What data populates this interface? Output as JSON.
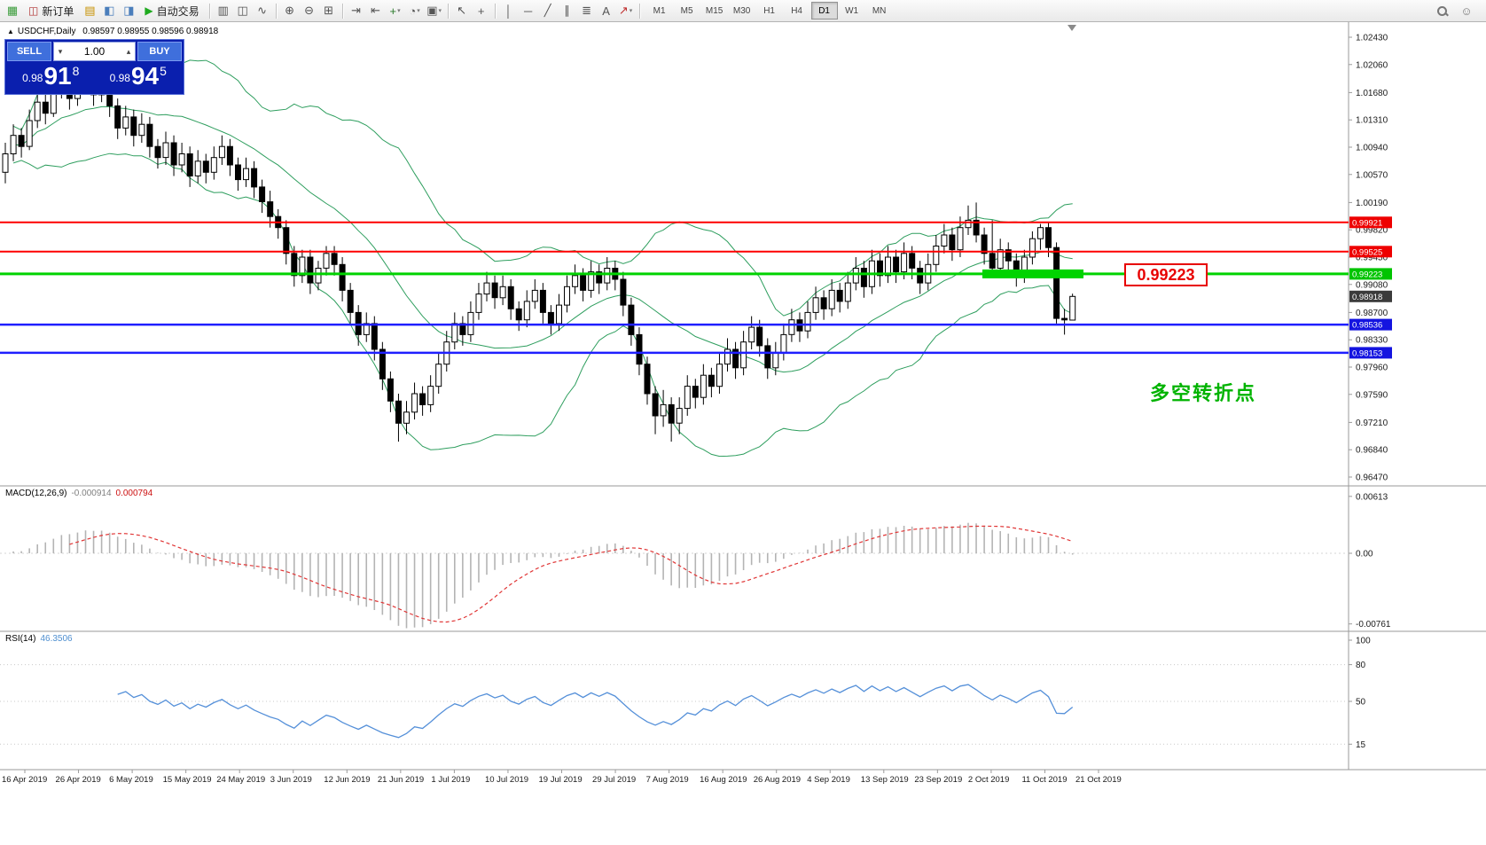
{
  "toolbar": {
    "items": [
      {
        "type": "icon",
        "name": "new-chart-icon"
      },
      {
        "type": "button",
        "name": "new-order-button",
        "icon": "new-order-icon",
        "label": "新订单"
      },
      {
        "type": "icon",
        "name": "market-watch-icon"
      },
      {
        "type": "icon",
        "name": "data-window-icon"
      },
      {
        "type": "icon",
        "name": "navigator-icon"
      },
      {
        "type": "button",
        "name": "autotrading-button",
        "icon": "autotrading-icon",
        "label": "自动交易"
      },
      {
        "type": "sep"
      },
      {
        "type": "icon",
        "name": "chart-bars-icon"
      },
      {
        "type": "icon",
        "name": "chart-candles-icon"
      },
      {
        "type": "icon",
        "name": "chart-line-icon"
      },
      {
        "type": "sep"
      },
      {
        "type": "icon",
        "name": "zoom-in-icon"
      },
      {
        "type": "icon",
        "name": "zoom-out-icon"
      },
      {
        "type": "icon",
        "name": "tile-windows-icon"
      },
      {
        "type": "sep"
      },
      {
        "type": "icon",
        "name": "auto-scroll-icon"
      },
      {
        "type": "icon",
        "name": "chart-shift-icon"
      },
      {
        "type": "icon",
        "name": "indicators-icon",
        "dropdown": true
      },
      {
        "type": "icon",
        "name": "periods-icon",
        "dropdown": true
      },
      {
        "type": "icon",
        "name": "templates-icon",
        "dropdown": true
      },
      {
        "type": "sep"
      },
      {
        "type": "icon",
        "name": "cursor-icon"
      },
      {
        "type": "icon",
        "name": "crosshair-icon"
      },
      {
        "type": "sep"
      },
      {
        "type": "icon",
        "name": "vertical-line-icon"
      },
      {
        "type": "icon",
        "name": "horizontal-line-icon"
      },
      {
        "type": "icon",
        "name": "trendline-icon"
      },
      {
        "type": "icon",
        "name": "channel-icon"
      },
      {
        "type": "icon",
        "name": "fibonacci-icon"
      },
      {
        "type": "icon",
        "name": "text-icon"
      },
      {
        "type": "icon",
        "name": "arrows-icon",
        "dropdown": true
      },
      {
        "type": "sep"
      },
      {
        "type": "tf-group"
      }
    ],
    "timeframes": [
      "M1",
      "M5",
      "M15",
      "M30",
      "H1",
      "H4",
      "D1",
      "W1",
      "MN"
    ],
    "active_timeframe": "D1",
    "right_icons": [
      {
        "name": "search-icon"
      },
      {
        "name": "community-icon"
      }
    ]
  },
  "chart_header": {
    "collapse_glyph": "▲",
    "symbol_period": "USDCHF,Daily",
    "ohlc": "0.98597 0.98955 0.98596 0.98918"
  },
  "trade_panel": {
    "sell_label": "SELL",
    "buy_label": "BUY",
    "volume": "1.00",
    "volume_down_glyph": "▾",
    "volume_up_glyph": "▴",
    "sell_price_prefix": "0.98",
    "sell_price_big": "91",
    "sell_price_pip": "8",
    "buy_price_prefix": "0.98",
    "buy_price_big": "94",
    "buy_price_pip": "5"
  },
  "annotation": {
    "price_label": "0.99223",
    "label_color": "#e80000",
    "note_text": "多空转折点",
    "note_color": "#00b300"
  },
  "price_axis": {
    "labels": [
      "1.02430",
      "1.02060",
      "1.01680",
      "1.01310",
      "1.00940",
      "1.00570",
      "1.00190",
      "0.99820",
      "0.99450",
      "0.99080",
      "0.98700",
      "0.98330",
      "0.97960",
      "0.97590",
      "0.97210",
      "0.96840",
      "0.96470"
    ],
    "tags": [
      {
        "text": "0.99921",
        "color": "#ee0000"
      },
      {
        "text": "0.99525",
        "color": "#ee0000"
      },
      {
        "text": "0.99223",
        "color": "#00c400"
      },
      {
        "text": "0.98918",
        "color": "#3b3b3b"
      },
      {
        "text": "0.98536",
        "color": "#1414e0"
      },
      {
        "text": "0.98153",
        "color": "#1414e0"
      }
    ]
  },
  "macd_panel": {
    "title": "MACD(12,26,9)",
    "main_value": "-0.000914",
    "signal_value": "0.000794",
    "axis_labels": [
      "0.00613",
      "0.00",
      "-0.00761"
    ]
  },
  "rsi_panel": {
    "title": "RSI(14)",
    "value": "46.3506",
    "axis_labels": [
      "100",
      "80",
      "50",
      "15"
    ]
  },
  "date_axis": {
    "labels": [
      "16 Apr 2019",
      "26 Apr 2019",
      "6 May 2019",
      "15 May 2019",
      "24 May 2019",
      "3 Jun 2019",
      "12 Jun 2019",
      "21 Jun 2019",
      "1 Jul 2019",
      "10 Jul 2019",
      "19 Jul 2019",
      "29 Jul 2019",
      "7 Aug 2019",
      "16 Aug 2019",
      "26 Aug 2019",
      "4 Sep 2019",
      "13 Sep 2019",
      "23 Sep 2019",
      "2 Oct 2019",
      "11 Oct 2019",
      "21 Oct 2019"
    ]
  },
  "chart_data": {
    "type": "candlestick",
    "symbol": "USDCHF",
    "period": "Daily",
    "price_range": [
      0.9647,
      1.0243
    ],
    "ohlc": [
      [
        1.006,
        1.01,
        1.0045,
        1.0085
      ],
      [
        1.0085,
        1.0125,
        1.0075,
        1.011
      ],
      [
        1.011,
        1.012,
        1.008,
        1.0095
      ],
      [
        1.0095,
        1.0145,
        1.009,
        1.013
      ],
      [
        1.013,
        1.017,
        1.012,
        1.0155
      ],
      [
        1.0155,
        1.0165,
        1.0125,
        1.014
      ],
      [
        1.014,
        1.0185,
        1.0135,
        1.017
      ],
      [
        1.017,
        1.02,
        1.016,
        1.0185
      ],
      [
        1.0185,
        1.0195,
        1.0145,
        1.016
      ],
      [
        1.016,
        1.019,
        1.015,
        1.0175
      ],
      [
        1.0175,
        1.0205,
        1.0165,
        1.019
      ],
      [
        1.019,
        1.02,
        1.015,
        1.0165
      ],
      [
        1.0165,
        1.019,
        1.0155,
        1.0175
      ],
      [
        1.0175,
        1.0185,
        1.0135,
        1.015
      ],
      [
        1.015,
        1.016,
        1.0105,
        1.012
      ],
      [
        1.012,
        1.015,
        1.011,
        1.0135
      ],
      [
        1.0135,
        1.0145,
        1.0095,
        1.011
      ],
      [
        1.011,
        1.014,
        1.01,
        1.0125
      ],
      [
        1.0125,
        1.0135,
        1.008,
        1.0095
      ],
      [
        1.0095,
        1.0105,
        1.0065,
        1.008
      ],
      [
        1.008,
        1.0115,
        1.007,
        1.01
      ],
      [
        1.01,
        1.011,
        1.0055,
        1.007
      ],
      [
        1.007,
        1.01,
        1.006,
        1.0085
      ],
      [
        1.0085,
        1.0095,
        1.004,
        1.0055
      ],
      [
        1.0055,
        1.009,
        1.0045,
        1.0075
      ],
      [
        1.0075,
        1.0085,
        1.0045,
        1.006
      ],
      [
        1.006,
        1.0095,
        1.005,
        1.008
      ],
      [
        1.008,
        1.011,
        1.007,
        1.0095
      ],
      [
        1.0095,
        1.0105,
        1.0055,
        1.007
      ],
      [
        1.007,
        1.008,
        1.0035,
        1.005
      ],
      [
        1.005,
        1.008,
        1.004,
        1.0065
      ],
      [
        1.0065,
        1.0075,
        1.0025,
        1.004
      ],
      [
        1.004,
        1.005,
        1.0005,
        1.002
      ],
      [
        1.002,
        1.0035,
        0.9985,
        1.0
      ],
      [
        1.0,
        1.001,
        0.997,
        0.9985
      ],
      [
        0.9985,
        0.9995,
        0.9935,
        0.995
      ],
      [
        0.995,
        0.996,
        0.9905,
        0.992
      ],
      [
        0.992,
        0.9955,
        0.991,
        0.9945
      ],
      [
        0.9945,
        0.9955,
        0.9895,
        0.991
      ],
      [
        0.991,
        0.994,
        0.99,
        0.993
      ],
      [
        0.993,
        0.996,
        0.992,
        0.995
      ],
      [
        0.995,
        0.996,
        0.992,
        0.9935
      ],
      [
        0.9935,
        0.9945,
        0.9885,
        0.99
      ],
      [
        0.99,
        0.991,
        0.9855,
        0.987
      ],
      [
        0.987,
        0.988,
        0.9825,
        0.984
      ],
      [
        0.984,
        0.987,
        0.983,
        0.9855
      ],
      [
        0.9855,
        0.9865,
        0.9805,
        0.982
      ],
      [
        0.982,
        0.983,
        0.9765,
        0.978
      ],
      [
        0.978,
        0.979,
        0.9735,
        0.975
      ],
      [
        0.975,
        0.976,
        0.9695,
        0.972
      ],
      [
        0.972,
        0.975,
        0.9705,
        0.9735
      ],
      [
        0.9735,
        0.9775,
        0.9725,
        0.976
      ],
      [
        0.976,
        0.977,
        0.973,
        0.9745
      ],
      [
        0.9745,
        0.9785,
        0.9735,
        0.977
      ],
      [
        0.977,
        0.9815,
        0.976,
        0.98
      ],
      [
        0.98,
        0.9845,
        0.979,
        0.983
      ],
      [
        0.983,
        0.987,
        0.982,
        0.9855
      ],
      [
        0.9855,
        0.9865,
        0.9825,
        0.984
      ],
      [
        0.984,
        0.9885,
        0.983,
        0.987
      ],
      [
        0.987,
        0.991,
        0.986,
        0.9895
      ],
      [
        0.9895,
        0.9925,
        0.9885,
        0.991
      ],
      [
        0.991,
        0.992,
        0.9875,
        0.989
      ],
      [
        0.989,
        0.992,
        0.988,
        0.9905
      ],
      [
        0.9905,
        0.9915,
        0.986,
        0.9875
      ],
      [
        0.9875,
        0.9885,
        0.9845,
        0.986
      ],
      [
        0.986,
        0.99,
        0.985,
        0.9885
      ],
      [
        0.9885,
        0.9915,
        0.9875,
        0.99
      ],
      [
        0.99,
        0.991,
        0.9855,
        0.987
      ],
      [
        0.987,
        0.988,
        0.984,
        0.9855
      ],
      [
        0.9855,
        0.9895,
        0.9845,
        0.988
      ],
      [
        0.988,
        0.992,
        0.987,
        0.9905
      ],
      [
        0.9905,
        0.9935,
        0.9895,
        0.992
      ],
      [
        0.992,
        0.993,
        0.9885,
        0.99
      ],
      [
        0.99,
        0.994,
        0.989,
        0.9925
      ],
      [
        0.9925,
        0.9935,
        0.9895,
        0.991
      ],
      [
        0.991,
        0.9945,
        0.99,
        0.993
      ],
      [
        0.993,
        0.994,
        0.99,
        0.9915
      ],
      [
        0.9915,
        0.9925,
        0.9865,
        0.988
      ],
      [
        0.988,
        0.989,
        0.9825,
        0.984
      ],
      [
        0.984,
        0.985,
        0.9785,
        0.98
      ],
      [
        0.98,
        0.981,
        0.9745,
        0.976
      ],
      [
        0.976,
        0.977,
        0.9705,
        0.973
      ],
      [
        0.973,
        0.9765,
        0.9715,
        0.9745
      ],
      [
        0.9745,
        0.9755,
        0.9695,
        0.972
      ],
      [
        0.972,
        0.9755,
        0.9705,
        0.974
      ],
      [
        0.974,
        0.9785,
        0.973,
        0.977
      ],
      [
        0.977,
        0.978,
        0.974,
        0.9755
      ],
      [
        0.9755,
        0.98,
        0.9745,
        0.9785
      ],
      [
        0.9785,
        0.9795,
        0.9755,
        0.977
      ],
      [
        0.977,
        0.9815,
        0.976,
        0.98
      ],
      [
        0.98,
        0.9835,
        0.979,
        0.982
      ],
      [
        0.982,
        0.983,
        0.978,
        0.9795
      ],
      [
        0.9795,
        0.9845,
        0.9785,
        0.983
      ],
      [
        0.983,
        0.9865,
        0.982,
        0.985
      ],
      [
        0.985,
        0.986,
        0.981,
        0.9825
      ],
      [
        0.9825,
        0.9835,
        0.978,
        0.9795
      ],
      [
        0.9795,
        0.983,
        0.9785,
        0.9815
      ],
      [
        0.9815,
        0.9855,
        0.9805,
        0.984
      ],
      [
        0.984,
        0.9875,
        0.983,
        0.986
      ],
      [
        0.986,
        0.987,
        0.983,
        0.9845
      ],
      [
        0.9845,
        0.9885,
        0.9835,
        0.987
      ],
      [
        0.987,
        0.9905,
        0.986,
        0.989
      ],
      [
        0.989,
        0.99,
        0.986,
        0.9875
      ],
      [
        0.9875,
        0.9915,
        0.9865,
        0.99
      ],
      [
        0.99,
        0.991,
        0.987,
        0.9885
      ],
      [
        0.9885,
        0.9925,
        0.9875,
        0.991
      ],
      [
        0.991,
        0.9945,
        0.99,
        0.993
      ],
      [
        0.993,
        0.994,
        0.989,
        0.9905
      ],
      [
        0.9905,
        0.9955,
        0.9895,
        0.994
      ],
      [
        0.994,
        0.995,
        0.9905,
        0.992
      ],
      [
        0.992,
        0.996,
        0.991,
        0.9945
      ],
      [
        0.9945,
        0.9955,
        0.991,
        0.9925
      ],
      [
        0.9925,
        0.9965,
        0.9915,
        0.995
      ],
      [
        0.995,
        0.996,
        0.9915,
        0.993
      ],
      [
        0.993,
        0.994,
        0.9895,
        0.991
      ],
      [
        0.991,
        0.995,
        0.99,
        0.9935
      ],
      [
        0.9935,
        0.9975,
        0.9925,
        0.996
      ],
      [
        0.996,
        0.999,
        0.995,
        0.9975
      ],
      [
        0.9975,
        0.9985,
        0.994,
        0.9955
      ],
      [
        0.9955,
        1.0,
        0.9945,
        0.9985
      ],
      [
        0.9985,
        1.0015,
        0.9975,
        0.9995
      ],
      [
        0.9995,
        1.0019,
        0.9965,
        0.9975
      ],
      [
        0.9975,
        0.9985,
        0.9935,
        0.995
      ],
      [
        0.995,
        0.9995,
        0.992,
        0.993
      ],
      [
        0.993,
        0.997,
        0.992,
        0.9955
      ],
      [
        0.9955,
        0.9965,
        0.9925,
        0.994
      ],
      [
        0.994,
        0.995,
        0.9905,
        0.992
      ],
      [
        0.992,
        0.9955,
        0.991,
        0.9945
      ],
      [
        0.9945,
        0.998,
        0.9935,
        0.997
      ],
      [
        0.997,
        0.999,
        0.9955,
        0.9985
      ],
      [
        0.9985,
        0.9992,
        0.9945,
        0.9958
      ],
      [
        0.9958,
        0.9965,
        0.9855,
        0.9862
      ],
      [
        0.9862,
        0.9875,
        0.984,
        0.986
      ],
      [
        0.98597,
        0.98955,
        0.98596,
        0.98918
      ]
    ],
    "bollinger": {
      "period": 20,
      "deviation": 2,
      "color": "#2e9e5e"
    },
    "hlines": [
      {
        "name": "resistance-line-upper",
        "price": 0.99921,
        "color": "#fe0000",
        "width": 2
      },
      {
        "name": "resistance-line-lower",
        "price": 0.99525,
        "color": "#fe0000",
        "width": 2
      },
      {
        "name": "pivot-line",
        "price": 0.99223,
        "color": "#00d300",
        "width": 3
      },
      {
        "name": "support-line-upper",
        "price": 0.98536,
        "color": "#1f1fff",
        "width": 2.5
      },
      {
        "name": "support-line-lower",
        "price": 0.98153,
        "color": "#1f1fff",
        "width": 2.5
      }
    ],
    "highlight_band": {
      "price": 0.99223,
      "color": "#00d300"
    },
    "macd": {
      "fast": 12,
      "slow": 26,
      "signal": 9,
      "histogram_color": "#b4b4b4",
      "signal_color": "#e03535"
    },
    "rsi": {
      "period": 14,
      "color": "#5590d9",
      "levels": [
        80,
        50,
        15
      ]
    }
  }
}
